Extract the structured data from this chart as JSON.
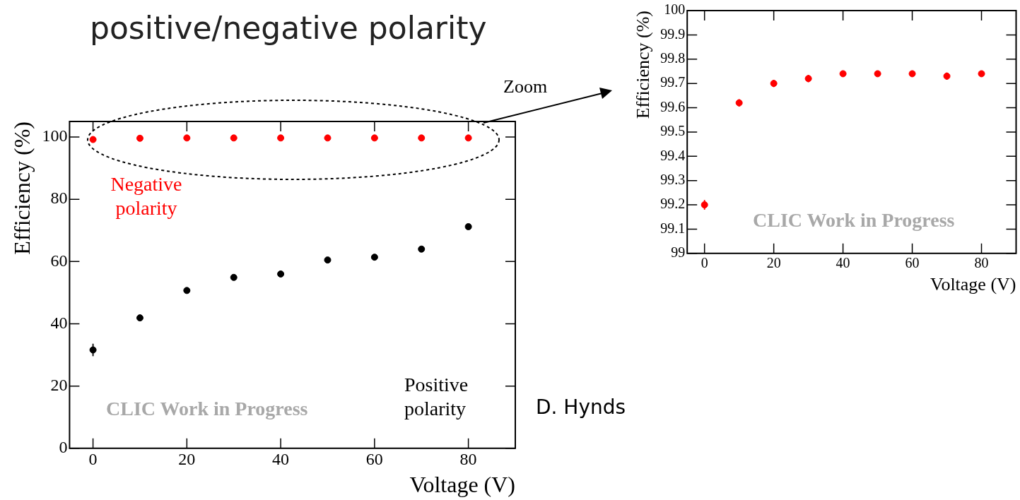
{
  "chart_data": [
    {
      "type": "scatter",
      "title": "positive/negative polarity",
      "xlabel": "Voltage (V)",
      "ylabel": "Efficiency (%)",
      "x": [
        0,
        10,
        20,
        30,
        40,
        50,
        60,
        70,
        80
      ],
      "series": [
        {
          "name": "Positive polarity",
          "color": "#000000",
          "values": [
            31.6,
            41.9,
            50.7,
            54.9,
            56.0,
            60.5,
            61.4,
            64.0,
            71.2
          ],
          "errors": [
            2,
            null,
            null,
            null,
            null,
            null,
            null,
            null,
            null
          ]
        },
        {
          "name": "Negative polarity",
          "color": "#ff0000",
          "values": [
            99.2,
            99.6,
            99.7,
            99.7,
            99.7,
            99.7,
            99.7,
            99.7,
            99.7
          ]
        }
      ],
      "xlim": [
        -5,
        90
      ],
      "xticks": [
        0,
        20,
        40,
        60,
        80
      ],
      "ylim": [
        0,
        105
      ],
      "yticks": [
        0,
        20,
        40,
        60,
        80,
        100
      ],
      "marker": "circle",
      "grid": false,
      "legend": "bottom right",
      "annotations": [
        "CLIC Work in Progress",
        "Zoom",
        "D. Hynds"
      ]
    },
    {
      "type": "scatter",
      "xlabel": "Voltage (V)",
      "ylabel": "Efficiency (%)",
      "x": [
        0,
        10,
        20,
        30,
        40,
        50,
        60,
        70,
        80
      ],
      "series": [
        {
          "color": "#ff0000",
          "values": [
            99.2,
            99.62,
            99.7,
            99.72,
            99.74,
            99.74,
            99.74,
            99.73,
            99.74
          ],
          "errors": [
            0.02,
            0.015,
            0.015,
            0.015,
            0.01,
            0.01,
            0.01,
            0.015,
            0.01
          ]
        }
      ],
      "xlim": [
        -5,
        90
      ],
      "xticks": [
        0,
        20,
        40,
        60,
        80
      ],
      "ylim": [
        99,
        100
      ],
      "yticks": [
        99,
        99.1,
        99.2,
        99.3,
        99.4,
        99.5,
        99.6,
        99.7,
        99.8,
        99.9,
        100
      ],
      "marker": "circle",
      "grid": false,
      "annotations": [
        "CLIC Work in Progress"
      ]
    }
  ]
}
